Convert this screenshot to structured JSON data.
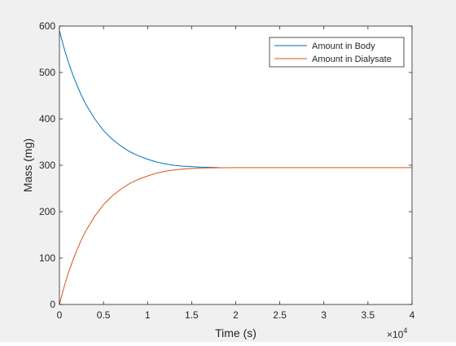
{
  "chart_data": {
    "type": "line",
    "xlabel": "Time (s)",
    "ylabel": "Mass (mg)",
    "x_exponent_label": "×10",
    "x_exponent": "4",
    "xlim": [
      0,
      40000
    ],
    "ylim": [
      0,
      600
    ],
    "x_tick_values": [
      0,
      5000,
      10000,
      15000,
      20000,
      25000,
      30000,
      35000,
      40000
    ],
    "x_tick_labels": [
      "0",
      "0.5",
      "1",
      "1.5",
      "2",
      "2.5",
      "3",
      "3.5",
      "4"
    ],
    "y_tick_values": [
      0,
      100,
      200,
      300,
      400,
      500,
      600
    ],
    "y_tick_labels": [
      "0",
      "100",
      "200",
      "300",
      "400",
      "500",
      "600"
    ],
    "legend_position": "top-right",
    "grid": false,
    "series": [
      {
        "name": "Amount in Body",
        "color": "#0072bd",
        "x": [
          0,
          500,
          1000,
          1500,
          2000,
          2500,
          3000,
          4000,
          5000,
          6000,
          7000,
          8000,
          9000,
          10000,
          11000,
          12000,
          13000,
          14000,
          16000,
          18200
        ],
        "y": [
          590,
          554,
          523,
          496,
          472,
          450,
          431,
          400,
          375,
          356,
          341,
          329,
          320,
          313,
          307,
          303,
          300,
          298,
          296,
          295
        ]
      },
      {
        "name": "Amount in Dialysate",
        "color": "#d95319",
        "x": [
          0,
          500,
          1000,
          1500,
          2000,
          2500,
          3000,
          4000,
          5000,
          6000,
          7000,
          8000,
          9000,
          10000,
          11000,
          12000,
          13000,
          14000,
          16000,
          20000,
          30000,
          40000
        ],
        "y": [
          0,
          36,
          67,
          94,
          118,
          140,
          159,
          190,
          215,
          234,
          249,
          261,
          270,
          277,
          283,
          287,
          290,
          292,
          294,
          295,
          295,
          295
        ]
      }
    ]
  }
}
